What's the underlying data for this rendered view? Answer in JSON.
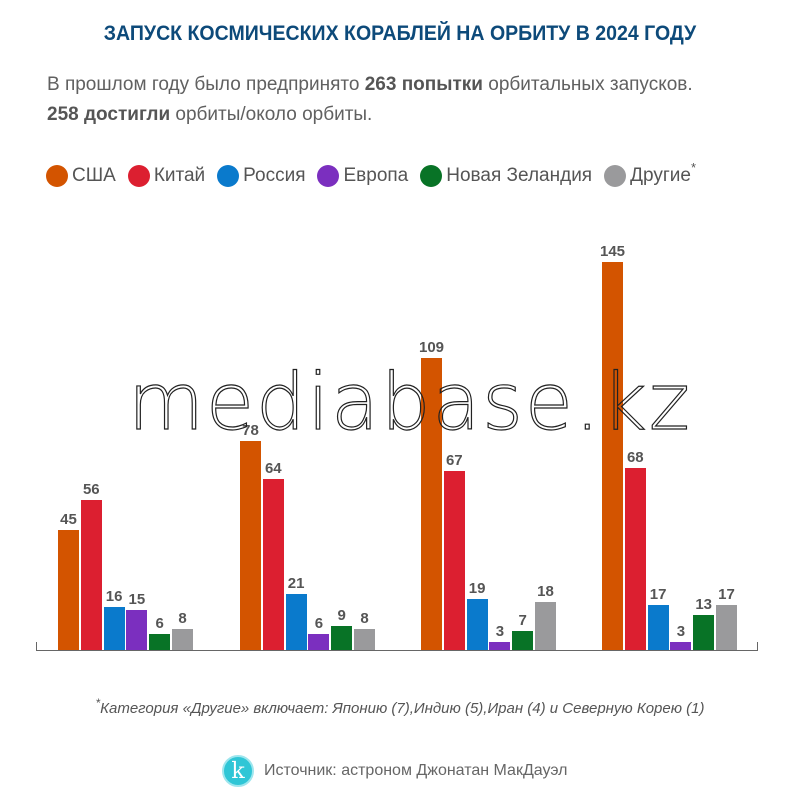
{
  "title": "ЗАПУСК КОСМИЧЕСКИХ КОРАБЛЕЙ НА ОРБИТУ В 2024 ГОДУ",
  "subtitle": {
    "line1_prefix": "В прошлом году было предпринято ",
    "line1_bold": "263 попытки",
    "line1_suffix": " орбитальных запусков.",
    "line2_bold": "258 достигли",
    "line2_suffix": " орбиты/около орбиты."
  },
  "legend": [
    {
      "label": "США",
      "color": "#d35400"
    },
    {
      "label": "Китай",
      "color": "#dc1f30"
    },
    {
      "label": "Россия",
      "color": "#0a7acc"
    },
    {
      "label": "Европа",
      "color": "#7b2fbf"
    },
    {
      "label": "Новая Зеландия",
      "color": "#087326"
    },
    {
      "label": "Другие",
      "color": "#9a9a9c",
      "asterisk": "*"
    }
  ],
  "watermark": "mediabase.kz",
  "footnote": {
    "asterisk": "*",
    "text": "Категория «Другие» включает: Японию (7),Индию (5),Иран (4) и Северную Корею (1)"
  },
  "source": {
    "logo_letter": "k",
    "text": "Источник: астроном Джонатан МакДауэл"
  },
  "chart_data": {
    "type": "bar",
    "title": "ЗАПУСК КОСМИЧЕСКИХ КОРАБЛЕЙ НА ОРБИТУ В 2024 ГОДУ",
    "categories": [
      "",
      "",
      "",
      ""
    ],
    "xlabel": "",
    "ylabel": "",
    "grid": false,
    "legend_position": "top",
    "ylim": [
      0,
      150
    ],
    "series": [
      {
        "name": "США",
        "color": "#d35400",
        "values": [
          45,
          78,
          109,
          145
        ]
      },
      {
        "name": "Китай",
        "color": "#dc1f30",
        "values": [
          56,
          64,
          67,
          68
        ]
      },
      {
        "name": "Россия",
        "color": "#0a7acc",
        "values": [
          16,
          21,
          19,
          17
        ]
      },
      {
        "name": "Европа",
        "color": "#7b2fbf",
        "values": [
          15,
          6,
          3,
          3
        ]
      },
      {
        "name": "Новая Зеландия",
        "color": "#087326",
        "values": [
          6,
          9,
          7,
          13
        ]
      },
      {
        "name": "Другие",
        "color": "#9a9a9c",
        "values": [
          8,
          8,
          18,
          17
        ]
      }
    ]
  }
}
